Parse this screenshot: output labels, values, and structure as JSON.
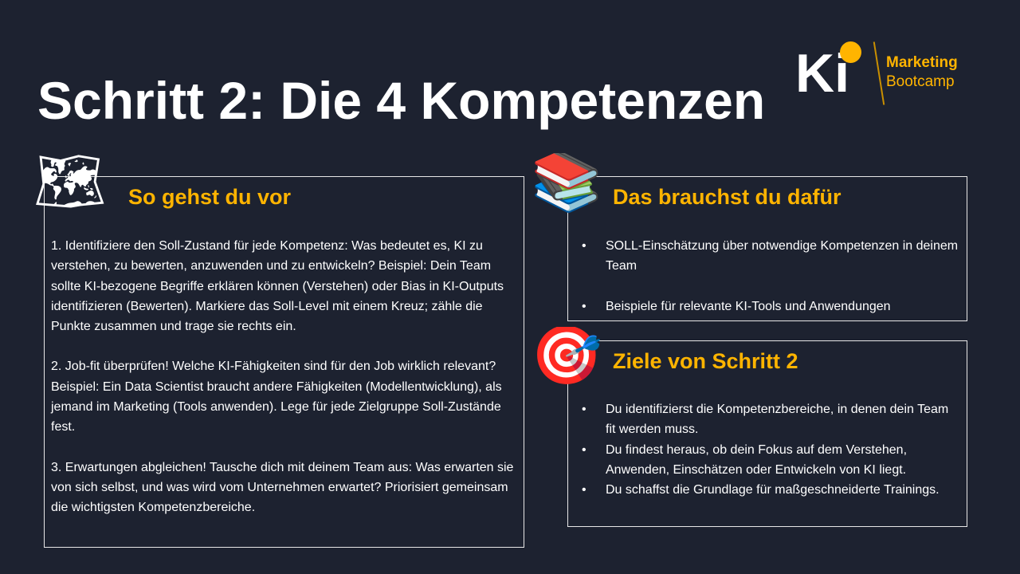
{
  "title": "Schritt 2: Die 4 Kompetenzen",
  "logo": {
    "ki": "Ki",
    "line1": "Marketing",
    "line2": "Bootcamp"
  },
  "accent": "#ffb400",
  "background": "#1d2230",
  "left": {
    "heading": "So gehst du vor",
    "icon": "world-map-icon",
    "paragraphs": [
      "1. Identifiziere den Soll-Zustand für jede Kompetenz: Was bedeutet es, KI zu verstehen, zu bewerten, anzuwenden und zu entwickeln? Beispiel: Dein Team sollte KI-bezogene Begriffe erklären können (Verstehen) oder Bias in KI-Outputs identifizieren (Bewerten). Markiere das Soll-Level mit einem Kreuz; zähle die Punkte zusammen und trage sie rechts ein.",
      "2. Job-fit überprüfen! Welche KI-Fähigkeiten sind für den Job wirklich relevant? Beispiel: Ein Data Scientist braucht andere Fähigkeiten (Modellentwicklung), als jemand im Marketing (Tools anwenden). Lege für jede Zielgruppe Soll-Zustände fest.",
      "3. Erwartungen abgleichen! Tausche dich mit deinem Team aus: Was erwarten sie von sich selbst, und was wird vom Unternehmen erwartet? Priorisiert gemeinsam die wichtigsten Kompetenzbereiche."
    ]
  },
  "needs": {
    "heading": "Das brauchst du dafür",
    "icon": "books-icon",
    "items": [
      "SOLL-Einschätzung über notwendige Kompetenzen in deinem Team",
      "Beispiele für relevante KI-Tools und Anwendungen"
    ]
  },
  "goals": {
    "heading": "Ziele von Schritt 2",
    "icon": "target-icon",
    "items": [
      "Du identifizierst die Kompetenzbereiche, in denen dein Team fit werden muss.",
      "Du findest heraus, ob dein Fokus auf dem Verstehen, Anwenden, Einschätzen oder Entwickeln von KI liegt.",
      "Du schaffst die Grundlage für maßgeschneiderte Trainings."
    ]
  }
}
